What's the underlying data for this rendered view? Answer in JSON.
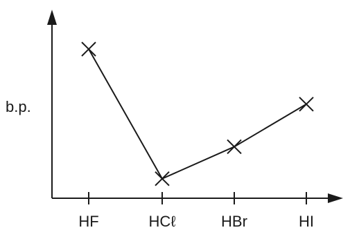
{
  "chart_data": {
    "type": "line",
    "categories": [
      "HF",
      "HCℓ",
      "HBr",
      "HI"
    ],
    "series": [
      {
        "values": [
          8.4,
          1.1,
          2.9,
          5.3
        ]
      }
    ],
    "ylabel": "b.p.",
    "xlabel": "",
    "title": "",
    "ylim": [
      0,
      10
    ],
    "marker": "x",
    "grid": false,
    "axes_arrows": true,
    "y_ticks": false
  },
  "colors": {
    "ink": "#1a1a1a",
    "background": "#ffffff"
  }
}
